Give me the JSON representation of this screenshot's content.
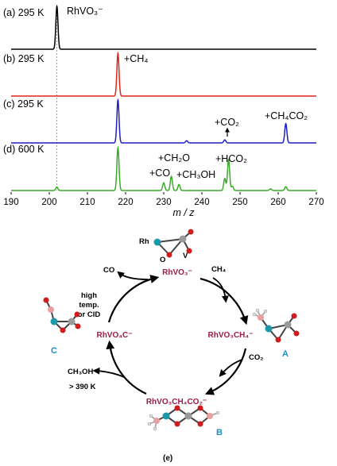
{
  "spectra": {
    "panels": [
      {
        "label": "(a) 295 K",
        "color": "#000000",
        "peaks": [
          {
            "mz": 202,
            "rel": 1.0
          }
        ],
        "annotations": [
          {
            "text": "RhVO₃⁻"
          }
        ]
      },
      {
        "label": "(b) 295 K",
        "color": "#e0251b",
        "peaks": [
          {
            "mz": 218,
            "rel": 1.0
          }
        ],
        "annotations": [
          {
            "text": "+CH₄"
          }
        ]
      },
      {
        "label": "(c) 295 K",
        "color": "#1f1fbf",
        "peaks": [
          {
            "mz": 218,
            "rel": 1.0
          },
          {
            "mz": 236,
            "rel": 0.05
          },
          {
            "mz": 246,
            "rel": 0.07
          },
          {
            "mz": 262,
            "rel": 0.45
          }
        ],
        "annotations": [
          {
            "text": "+CO₂"
          },
          {
            "text": "+CH₄CO₂"
          }
        ]
      },
      {
        "label": "(d) 600 K",
        "color": "#3aaa2a",
        "peaks": [
          {
            "mz": 202,
            "rel": 0.08
          },
          {
            "mz": 218,
            "rel": 1.0
          },
          {
            "mz": 230,
            "rel": 0.18
          },
          {
            "mz": 232,
            "rel": 0.33
          },
          {
            "mz": 234,
            "rel": 0.14
          },
          {
            "mz": 246,
            "rel": 0.28
          },
          {
            "mz": 247,
            "rel": 0.72
          },
          {
            "mz": 248,
            "rel": 0.1
          },
          {
            "mz": 258,
            "rel": 0.04
          },
          {
            "mz": 262,
            "rel": 0.09
          }
        ],
        "annotations": [
          {
            "text": "+CH₂O"
          },
          {
            "text": "+CO"
          },
          {
            "text": "+CH₃OH"
          },
          {
            "text": "+HCO₂"
          }
        ]
      }
    ],
    "x_axis": {
      "min": 190,
      "max": 270,
      "ticks": [
        "190",
        "200",
        "210",
        "220",
        "230",
        "240",
        "250",
        "260",
        "270"
      ],
      "label": "m / z"
    }
  },
  "cycle": {
    "species": {
      "top": "RhVO₃⁻",
      "right": "RhVO₃CH₄⁻",
      "bottom": "RhVO₃CH₄CO₂⁻",
      "left": "RhVO₄C⁻"
    },
    "reagents": {
      "ch4": "CH₄",
      "co2": "CO₂",
      "co": "CO",
      "ch3oh": "CH₃OH",
      "temp": "> 390 K",
      "high_line1": "high",
      "high_line2": "temp.",
      "high_line3": "or CID"
    },
    "atom_labels": {
      "rh": "Rh",
      "o": "O",
      "v": "V"
    },
    "conformers": {
      "a": "A",
      "b": "B",
      "c": "C"
    },
    "caption": "(e)"
  }
}
